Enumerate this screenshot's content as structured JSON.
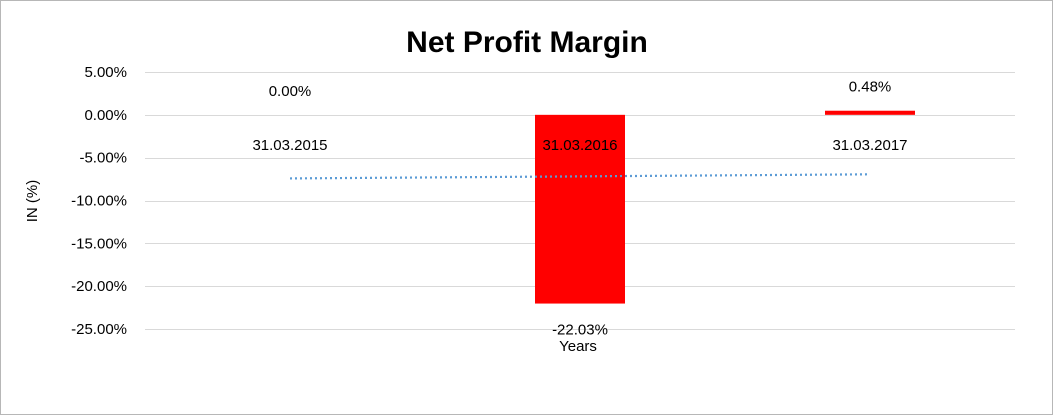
{
  "chart_data": {
    "type": "bar",
    "title": "Net Profit Margin",
    "xlabel": "Years",
    "ylabel": "IN (%)",
    "categories": [
      "31.03.2015",
      "31.03.2016",
      "31.03.2017"
    ],
    "series": [
      {
        "values": [
          0.0,
          -22.03,
          0.48
        ],
        "data_labels": [
          "0.00%",
          "-22.03%",
          "0.48%"
        ]
      }
    ],
    "ylim": [
      -25,
      5
    ],
    "y_ticks": [
      5,
      0,
      -5,
      -10,
      -15,
      -20,
      -25
    ],
    "y_tick_labels": [
      "5.00%",
      "0.00%",
      "-5.00%",
      "-10.00%",
      "-15.00%",
      "-20.00%",
      "-25.00%"
    ],
    "grid": true,
    "trendline": {
      "type": "linear",
      "style": "dotted"
    },
    "colors": {
      "bar": "#ff0000",
      "trendline": "#5b9bd5",
      "grid": "#d9d9d9"
    }
  }
}
